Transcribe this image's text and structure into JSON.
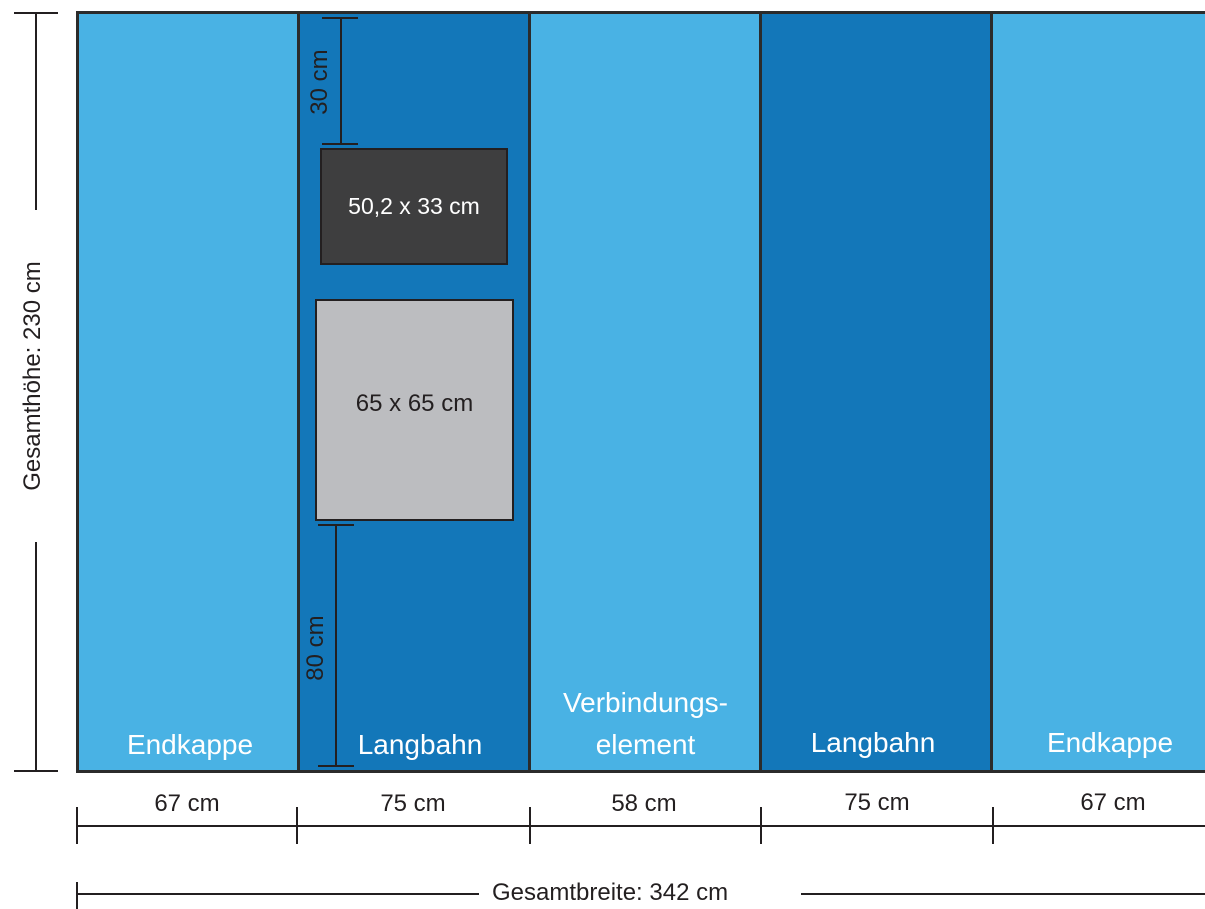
{
  "panels": [
    {
      "label": "Endkappe",
      "width_label": "67 cm"
    },
    {
      "label": "Langbahn",
      "width_label": "75 cm"
    },
    {
      "label_line1": "Verbindungs-",
      "label_line2": "element",
      "width_label": "58 cm"
    },
    {
      "label": "Langbahn",
      "width_label": "75 cm"
    },
    {
      "label": "Endkappe",
      "width_label": "67 cm"
    }
  ],
  "frames": {
    "small": {
      "label": "50,2 x 33 cm"
    },
    "large": {
      "label": "65 x 65 cm"
    }
  },
  "dimensions": {
    "top_offset": "30 cm",
    "bottom_offset": "80 cm",
    "total_height": "Gesamthöhe: 230 cm",
    "total_width": "Gesamtbreite: 342 cm"
  },
  "colors": {
    "light_panel": "#49b2e4",
    "dark_panel": "#1377b9",
    "frame_dark": "#3e3e3f",
    "frame_light": "#bcbdc0"
  }
}
